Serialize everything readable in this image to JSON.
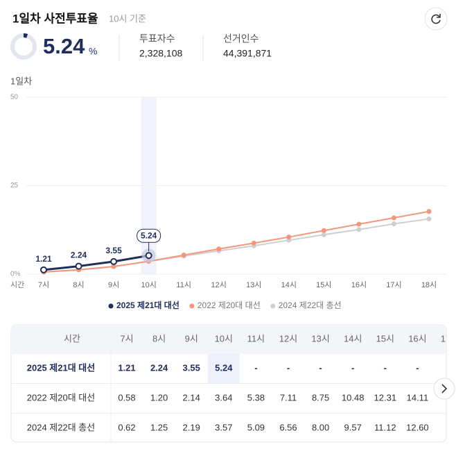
{
  "header": {
    "title": "1일차 사전투표율",
    "subtitle": "10시 기준",
    "rate": 5.24,
    "rate_unit": "%",
    "stats": [
      {
        "label": "투표자수",
        "value": "2,328,108"
      },
      {
        "label": "선거인수",
        "value": "44,391,871"
      }
    ]
  },
  "chart_data": {
    "type": "line",
    "ylabel": "1일차",
    "xlabel": "시간",
    "categories": [
      "7시",
      "8시",
      "9시",
      "10시",
      "11시",
      "12시",
      "13시",
      "14시",
      "15시",
      "16시",
      "17시",
      "18시"
    ],
    "ylim": [
      0,
      50
    ],
    "yticks": [
      {
        "value": 0,
        "label": "0%"
      },
      25,
      50
    ],
    "grid": true,
    "legend": "bottom",
    "series": [
      {
        "name": "2025 제21대 대선",
        "color": "#1f2d5c",
        "values": [
          1.21,
          2.24,
          3.55,
          5.24,
          null,
          null,
          null,
          null,
          null,
          null,
          null,
          null
        ]
      },
      {
        "name": "2022 제20대 대선",
        "color": "#f4967a",
        "values": [
          0.58,
          1.2,
          2.14,
          3.64,
          5.38,
          7.11,
          8.75,
          10.48,
          12.31,
          14.11,
          15.9,
          17.7
        ]
      },
      {
        "name": "2024 제22대 총선",
        "color": "#cfcfcf",
        "values": [
          0.62,
          1.25,
          2.19,
          3.57,
          5.09,
          6.56,
          8.0,
          9.57,
          11.12,
          12.6,
          14.2,
          15.6
        ]
      }
    ]
  },
  "table": {
    "rows": [
      [
        "1.21",
        "2.24",
        "3.55",
        "5.24",
        "-",
        "-",
        "-",
        "-",
        "-",
        "-"
      ],
      [
        "0.58",
        "1.20",
        "2.14",
        "3.64",
        "5.38",
        "7.11",
        "8.75",
        "10.48",
        "12.31",
        "14.11"
      ],
      [
        "0.62",
        "1.25",
        "2.19",
        "3.57",
        "5.09",
        "6.56",
        "8.00",
        "9.57",
        "11.12",
        "12.60"
      ]
    ]
  }
}
